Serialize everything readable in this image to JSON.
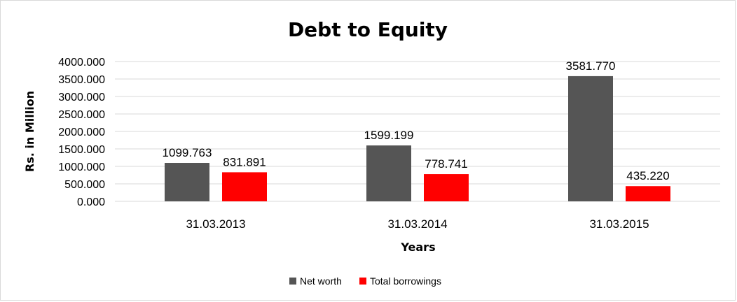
{
  "chart_data": {
    "type": "bar",
    "title": "Debt to Equity",
    "xlabel": "Years",
    "ylabel": "Rs. in Million",
    "categories": [
      "31.03.2013",
      "31.03.2014",
      "31.03.2015"
    ],
    "series": [
      {
        "name": "Net worth",
        "color": "#555555",
        "values": [
          1099.763,
          1599.199,
          3581.77
        ],
        "labels": [
          "1099.763",
          "1599.199",
          "3581.770"
        ]
      },
      {
        "name": "Total borrowings",
        "color": "#ff0000",
        "values": [
          831.891,
          778.741,
          435.22
        ],
        "labels": [
          "831.891",
          "778.741",
          "435.220"
        ]
      }
    ],
    "ylim": [
      0,
      4000
    ],
    "yticks": [
      0,
      500,
      1000,
      1500,
      2000,
      2500,
      3000,
      3500,
      4000
    ],
    "ytick_labels": [
      "0.000",
      "500.000",
      "1000.000",
      "1500.000",
      "2000.000",
      "2500.000",
      "3000.000",
      "3500.000",
      "4000.000"
    ],
    "grid": true,
    "legend_position": "bottom"
  }
}
